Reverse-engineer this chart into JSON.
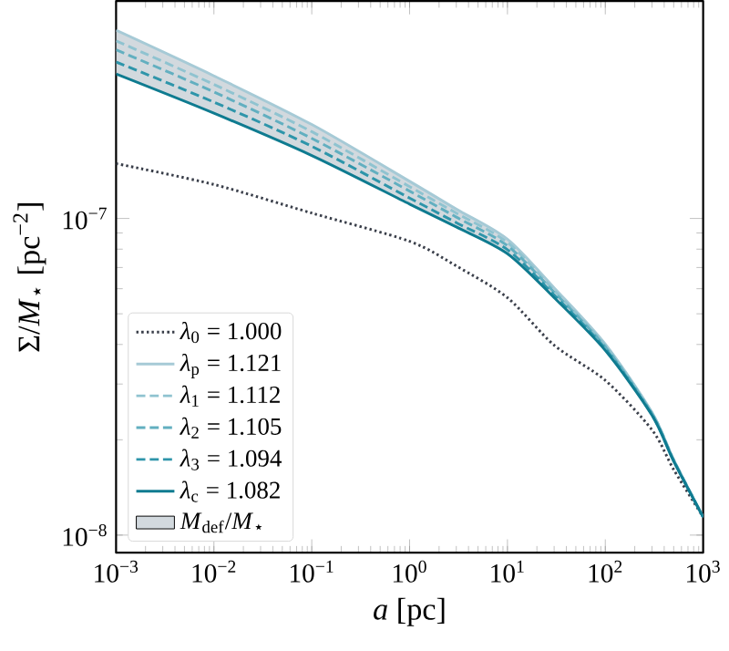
{
  "chart_data": {
    "type": "line",
    "xlabel": "*a* [pc]",
    "ylabel": "Σ/*M*$_{⋆}$ [pc$^{−2}$]",
    "log": "xy",
    "grid": false,
    "legend": "bottom left",
    "xlim": [
      0.001,
      1000
    ],
    "ylim": [
      8.8e-09,
      4.86e-07
    ],
    "xticks": [
      {
        "value": 0.001,
        "label": "10$^{−3}$"
      },
      {
        "value": 0.01,
        "label": "10$^{−2}$"
      },
      {
        "value": 0.1,
        "label": "10$^{−1}$"
      },
      {
        "value": 1,
        "label": "10$^{0}$"
      },
      {
        "value": 10,
        "label": "10$^{1}$"
      },
      {
        "value": 100,
        "label": "10$^{2}$"
      },
      {
        "value": 1000,
        "label": "10$^{3}$"
      }
    ],
    "yticks": [
      {
        "value": 1e-08,
        "label": "10$^{−8}$"
      },
      {
        "value": 1e-07,
        "label": "10$^{−7}$"
      }
    ],
    "x": [
      0.001,
      0.01,
      0.1,
      1,
      3,
      10,
      30,
      100,
      300,
      500,
      1000
    ],
    "series": [
      {
        "name": "*λ*$_{0}$ = 1.000",
        "color": "#3a3f4a",
        "line_style": "dotted",
        "values": [
          1.49e-07,
          1.28e-07,
          1.04e-07,
          8.47e-08,
          7.08e-08,
          5.62e-08,
          3.98e-08,
          3.08e-08,
          2.15e-08,
          1.61e-08,
          1.14e-08
        ]
      },
      {
        "name": "*λ*$_{p}$ = 1.121",
        "color": "#a6cad6",
        "line_style": "solid",
        "values": [
          3.93e-07,
          2.82e-07,
          1.98e-07,
          1.31e-07,
          1.07e-07,
          8.6e-08,
          6.04e-08,
          4.01e-08,
          2.44e-08,
          1.73e-08,
          1.14e-08
        ]
      },
      {
        "name": "*λ*$_{1}$ = 1.112",
        "color": "#8fc3d0",
        "line_style": "dashed",
        "values": [
          3.64e-07,
          2.65e-07,
          1.88e-07,
          1.26e-07,
          1.04e-07,
          8.4e-08,
          5.93e-08,
          3.97e-08,
          2.43e-08,
          1.73e-08,
          1.14e-08
        ]
      },
      {
        "name": "*λ*$_{2}$ = 1.105",
        "color": "#62afc0",
        "line_style": "dashed",
        "values": [
          3.41e-07,
          2.51e-07,
          1.79e-07,
          1.22e-07,
          1.01e-07,
          8.2e-08,
          5.85e-08,
          3.93e-08,
          2.42e-08,
          1.72e-08,
          1.14e-08
        ]
      },
      {
        "name": "*λ*$_{3}$ = 1.094",
        "color": "#2e95aa",
        "line_style": "dashed",
        "values": [
          3.12e-07,
          2.33e-07,
          1.69e-07,
          1.16e-07,
          9.7e-08,
          7.97e-08,
          5.73e-08,
          3.88e-08,
          2.4e-08,
          1.72e-08,
          1.14e-08
        ]
      },
      {
        "name": "*λ*$_{c}$ = 1.082",
        "color": "#0f7b90",
        "line_style": "solid",
        "values": [
          2.86e-07,
          2.15e-07,
          1.58e-07,
          1.11e-07,
          9.4e-08,
          7.74e-08,
          5.62e-08,
          3.83e-08,
          2.39e-08,
          1.71e-08,
          1.14e-08
        ]
      },
      {
        "type": "area",
        "name": "*M*$_{def}$/*M*$_{⋆}$",
        "color": "#d2d9de",
        "values": [
          null,
          null,
          null,
          null,
          null,
          null,
          null,
          null,
          null,
          null,
          null
        ],
        "upper": [
          3.93e-07,
          2.82e-07,
          1.98e-07,
          1.31e-07,
          1.07e-07,
          8.6e-08,
          6.04e-08,
          4.01e-08,
          2.44e-08,
          1.73e-08,
          1.14e-08
        ],
        "lower": [
          2.86e-07,
          2.15e-07,
          1.58e-07,
          1.11e-07,
          9.4e-08,
          7.74e-08,
          5.62e-08,
          3.83e-08,
          2.39e-08,
          1.71e-08,
          1.14e-08
        ]
      }
    ]
  }
}
